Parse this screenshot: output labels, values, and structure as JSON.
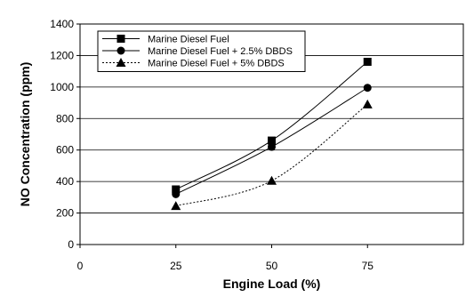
{
  "chart_data": {
    "type": "line",
    "xlabel": "Engine Load (%)",
    "ylabel": "NO Concentration (ppm)",
    "x_ticks": [
      0,
      25,
      50,
      75
    ],
    "y_ticks": [
      0,
      200,
      400,
      600,
      800,
      1000,
      1200,
      1400
    ],
    "xlim": [
      0,
      100
    ],
    "ylim": [
      0,
      1400
    ],
    "grid": "horizontal",
    "legend_position": "top-left",
    "x": [
      25,
      50,
      75
    ],
    "series": [
      {
        "name": "Marine Diesel Fuel",
        "values": [
          350,
          660,
          1160
        ],
        "marker": "square",
        "line": "solid",
        "color": "#000000"
      },
      {
        "name": "Marine Diesel Fuel + 2.5% DBDS",
        "values": [
          320,
          620,
          995
        ],
        "marker": "circle",
        "line": "solid",
        "color": "#000000"
      },
      {
        "name": "Marine Diesel Fuel + 5% DBDS",
        "values": [
          245,
          405,
          890
        ],
        "marker": "triangle",
        "line": "dotted",
        "color": "#000000"
      }
    ]
  }
}
